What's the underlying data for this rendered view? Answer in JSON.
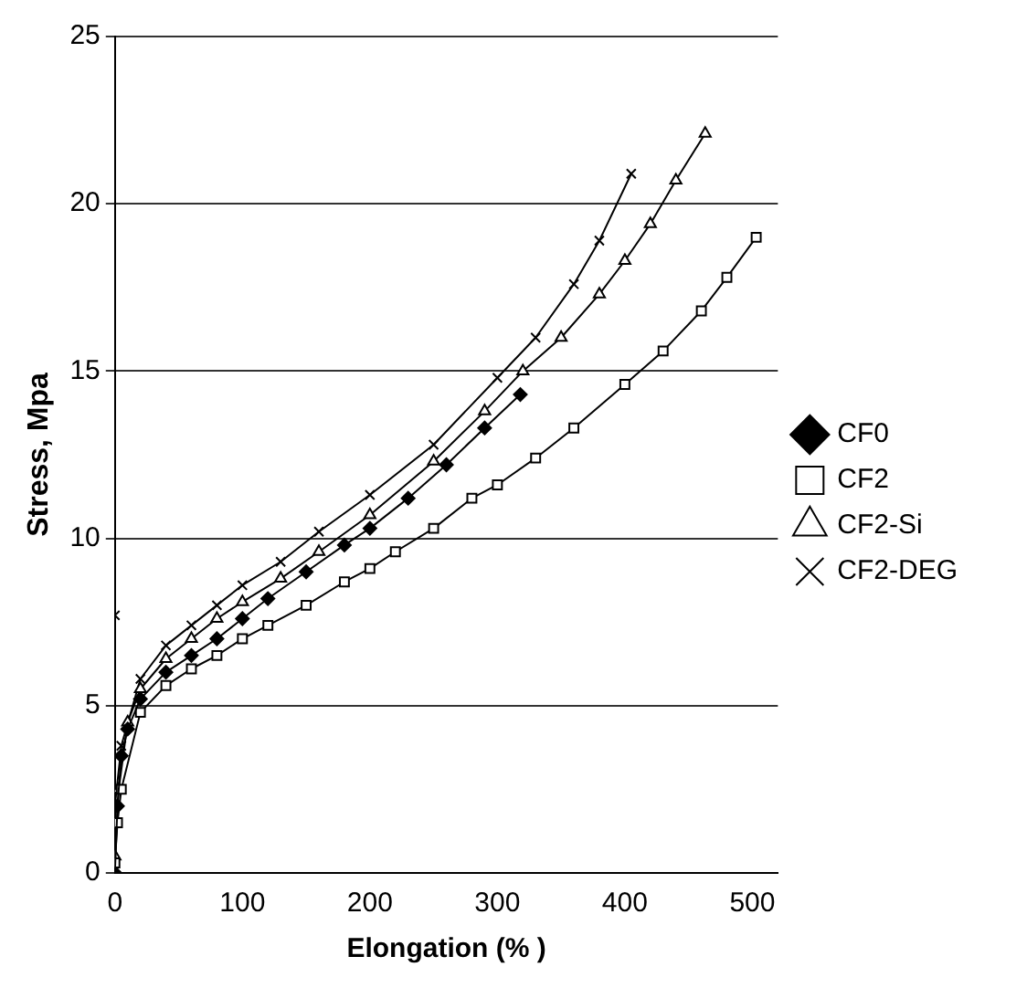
{
  "chart_data": {
    "type": "line",
    "xlabel": "Elongation (% )",
    "ylabel": "Stress, Mpa",
    "xlim": [
      0,
      520
    ],
    "xticks": [
      0,
      100,
      200,
      300,
      400,
      500
    ],
    "ylim": [
      0,
      25
    ],
    "yticks": [
      0,
      5,
      10,
      15,
      20,
      25
    ],
    "grid": "y",
    "legend": "right",
    "line_style": "solid",
    "series": [
      {
        "name": "CF0",
        "color": "#000000",
        "marker": "diamond",
        "x": [
          0,
          2,
          5,
          10,
          20,
          40,
          60,
          80,
          100,
          120,
          150,
          180,
          200,
          230,
          260,
          290,
          318
        ],
        "values": [
          0,
          2,
          3.5,
          4.3,
          5.2,
          6,
          6.5,
          7,
          7.6,
          8.2,
          9,
          9.8,
          10.3,
          11.2,
          12.2,
          13.3,
          14.3
        ]
      },
      {
        "name": "CF2",
        "color": "#000000",
        "marker": "square",
        "x": [
          0,
          2,
          5,
          20,
          40,
          60,
          80,
          100,
          120,
          150,
          180,
          200,
          220,
          250,
          280,
          300,
          330,
          360,
          400,
          430,
          460,
          480,
          503
        ],
        "values": [
          0.3,
          1.5,
          2.5,
          4.8,
          5.6,
          6.1,
          6.5,
          7,
          7.4,
          8,
          8.7,
          9.1,
          9.6,
          10.3,
          11.2,
          11.6,
          12.4,
          13.3,
          14.6,
          15.6,
          16.8,
          17.8,
          19
        ]
      },
      {
        "name": "CF2-Si",
        "color": "#000000",
        "marker": "triangle",
        "x": [
          0,
          3,
          10,
          20,
          40,
          60,
          80,
          100,
          130,
          160,
          200,
          250,
          290,
          320,
          350,
          380,
          400,
          420,
          440,
          463
        ],
        "values": [
          0.5,
          2.5,
          4.5,
          5.5,
          6.4,
          7,
          7.6,
          8.1,
          8.8,
          9.6,
          10.7,
          12.3,
          13.8,
          15,
          16,
          17.3,
          18.3,
          19.4,
          20.7,
          22.1
        ]
      },
      {
        "name": "CF2-DEG",
        "color": "#000000",
        "marker": "cross",
        "x": [
          0,
          0,
          5,
          20,
          40,
          60,
          80,
          100,
          130,
          160,
          200,
          250,
          300,
          330,
          360,
          380,
          405
        ],
        "values": [
          7.7,
          2,
          3.8,
          5.8,
          6.8,
          7.4,
          8,
          8.6,
          9.3,
          10.2,
          11.3,
          12.8,
          14.8,
          16,
          17.6,
          18.9,
          20.9
        ]
      }
    ]
  }
}
